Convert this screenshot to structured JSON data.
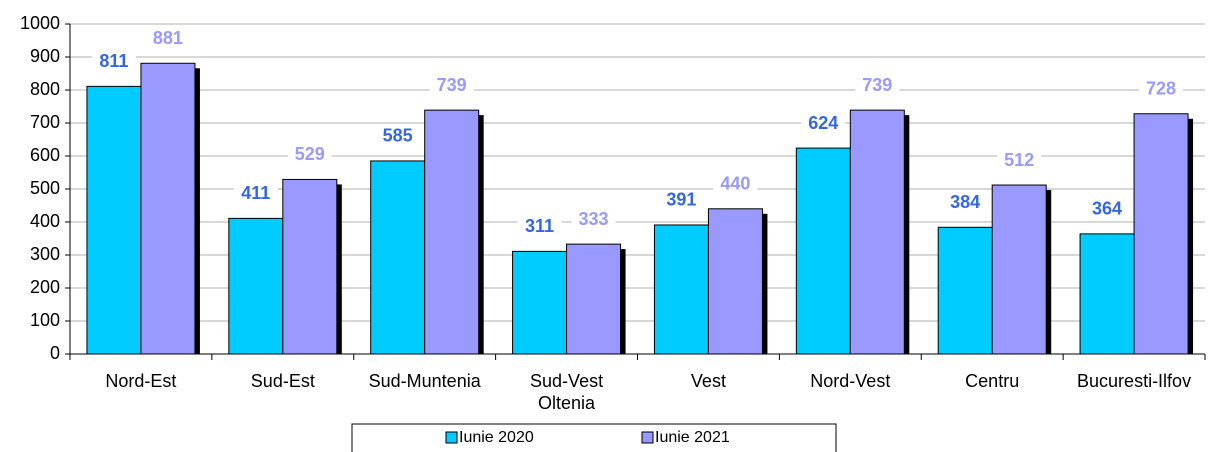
{
  "chart_data": {
    "type": "bar",
    "categories": [
      "Nord-Est",
      "Sud-Est",
      "Sud-Muntenia",
      "Sud-Vest Oltenia",
      "Vest",
      "Nord-Vest",
      "Centru",
      "Bucuresti-Ilfov"
    ],
    "series": [
      {
        "name": "Iunie 2020",
        "color": "#00ccff",
        "label_color": "#3366e6",
        "values": [
          811,
          411,
          585,
          311,
          391,
          624,
          384,
          364
        ]
      },
      {
        "name": "Iunie 2021",
        "color": "#9999ff",
        "label_color": "#9999ff",
        "values": [
          881,
          529,
          739,
          333,
          440,
          739,
          512,
          728
        ]
      }
    ],
    "ylim": [
      0,
      1000
    ],
    "yticks": [
      0,
      100,
      200,
      300,
      400,
      500,
      600,
      700,
      800,
      900,
      1000
    ],
    "grid": true,
    "legend": "bottom"
  }
}
